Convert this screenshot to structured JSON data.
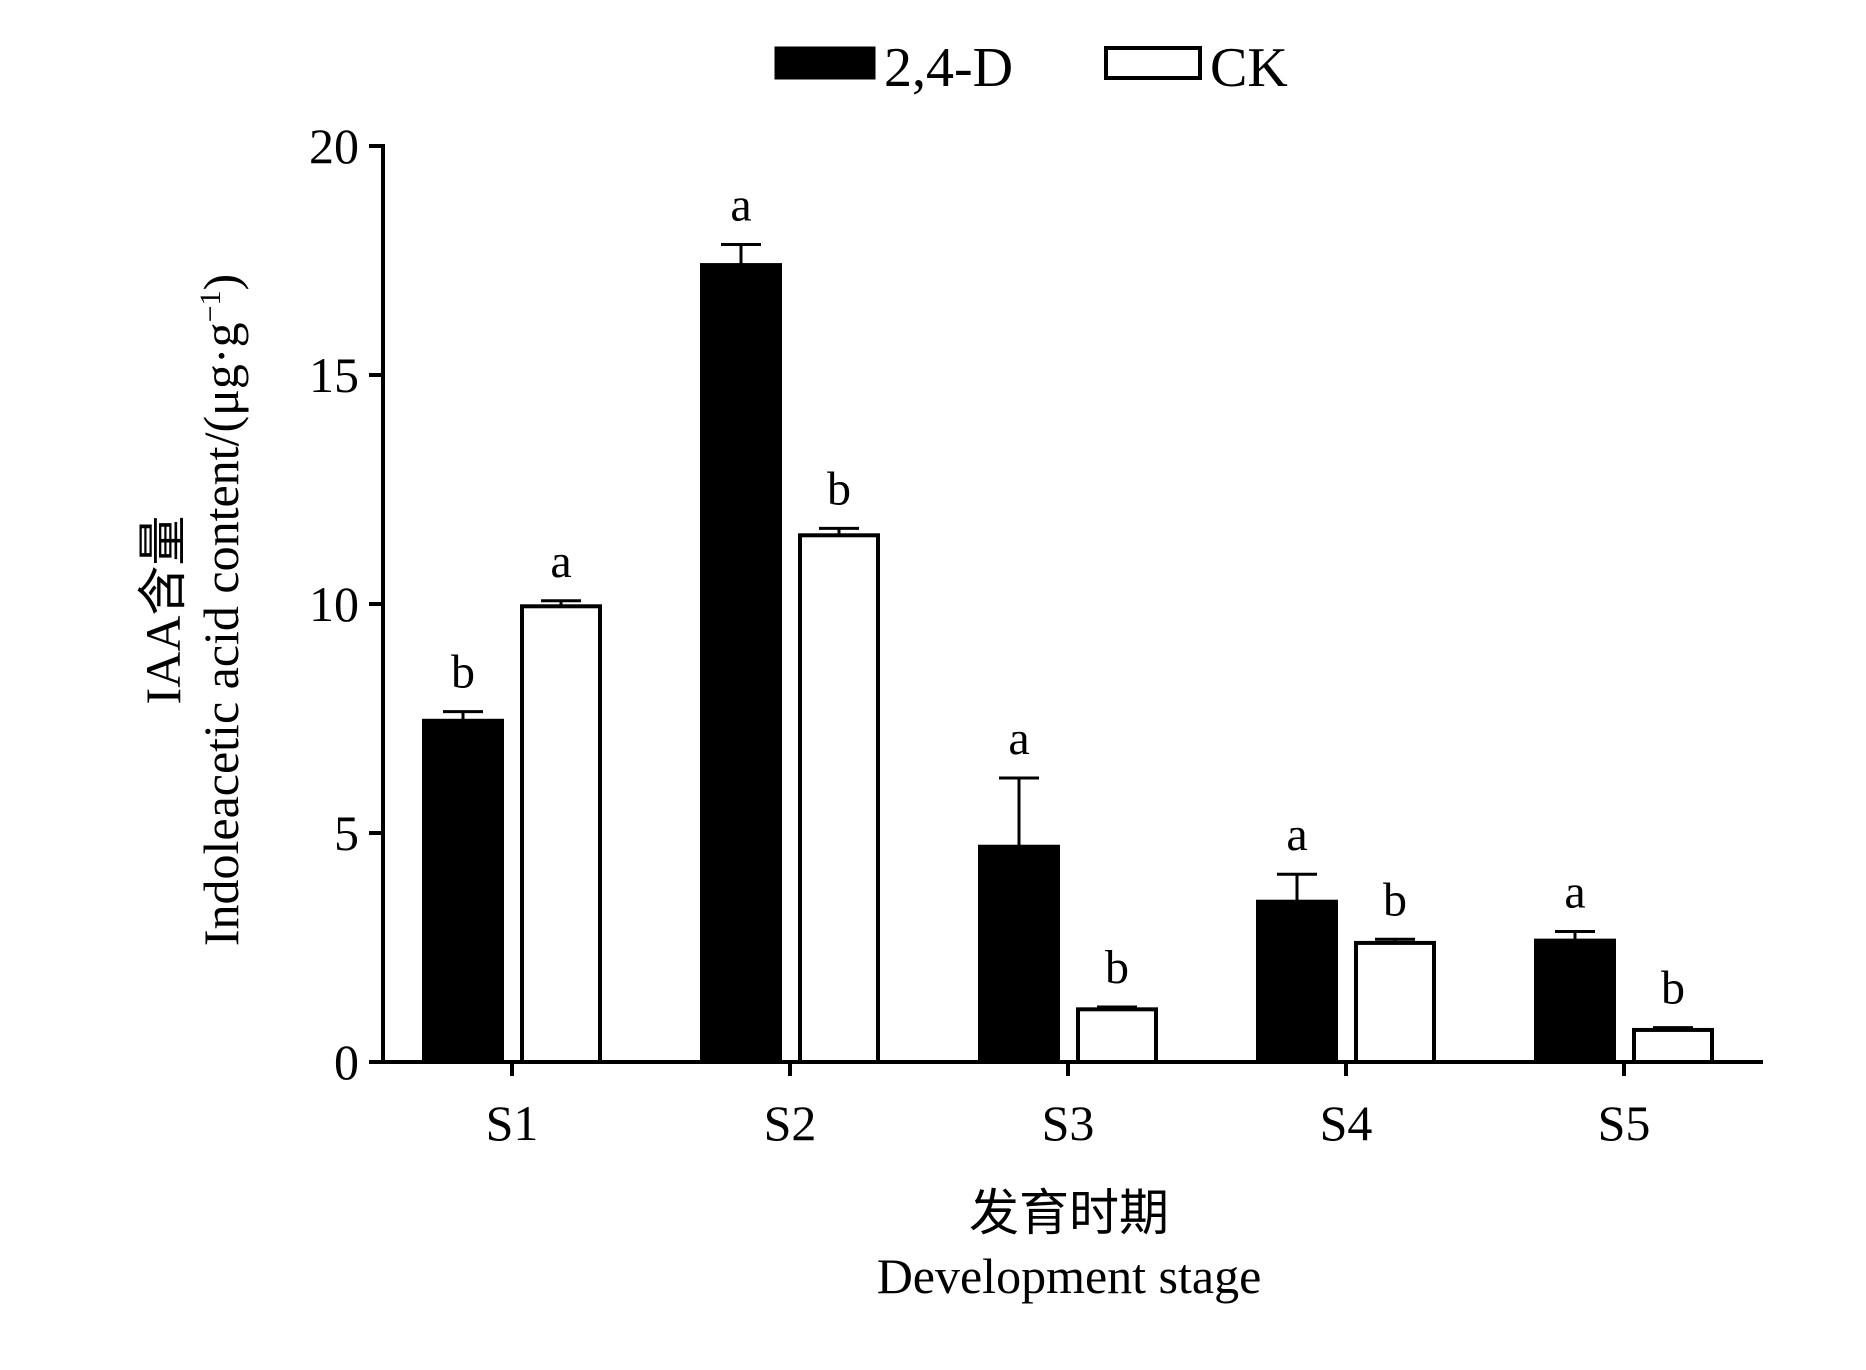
{
  "chart_data": {
    "type": "bar",
    "categories": [
      "S1",
      "S2",
      "S3",
      "S4",
      "S5"
    ],
    "series": [
      {
        "name": "2,4-D",
        "fill": "#000000",
        "values": [
          7.45,
          17.4,
          4.7,
          3.5,
          2.65
        ],
        "errors": [
          0.2,
          0.45,
          1.5,
          0.6,
          0.2
        ],
        "letters": [
          "b",
          "a",
          "a",
          "a",
          "a"
        ]
      },
      {
        "name": "CK",
        "fill": "#ffffff",
        "values": [
          9.95,
          11.5,
          1.15,
          2.6,
          0.7
        ],
        "errors": [
          0.12,
          0.15,
          0.05,
          0.08,
          0.05
        ],
        "letters": [
          "a",
          "b",
          "b",
          "b",
          "b"
        ]
      }
    ],
    "ylim": [
      0,
      20
    ],
    "yticks": [
      0,
      5,
      10,
      15,
      20
    ],
    "ylabel_cn": "IAA含量",
    "ylabel_en": "Indoleacetic acid content/(μg·g",
    "ylabel_en_sup": "−1",
    "ylabel_en_tail": ")",
    "xlabel_cn": "发育时期",
    "xlabel_en": "Development stage",
    "legend_position": "top"
  }
}
